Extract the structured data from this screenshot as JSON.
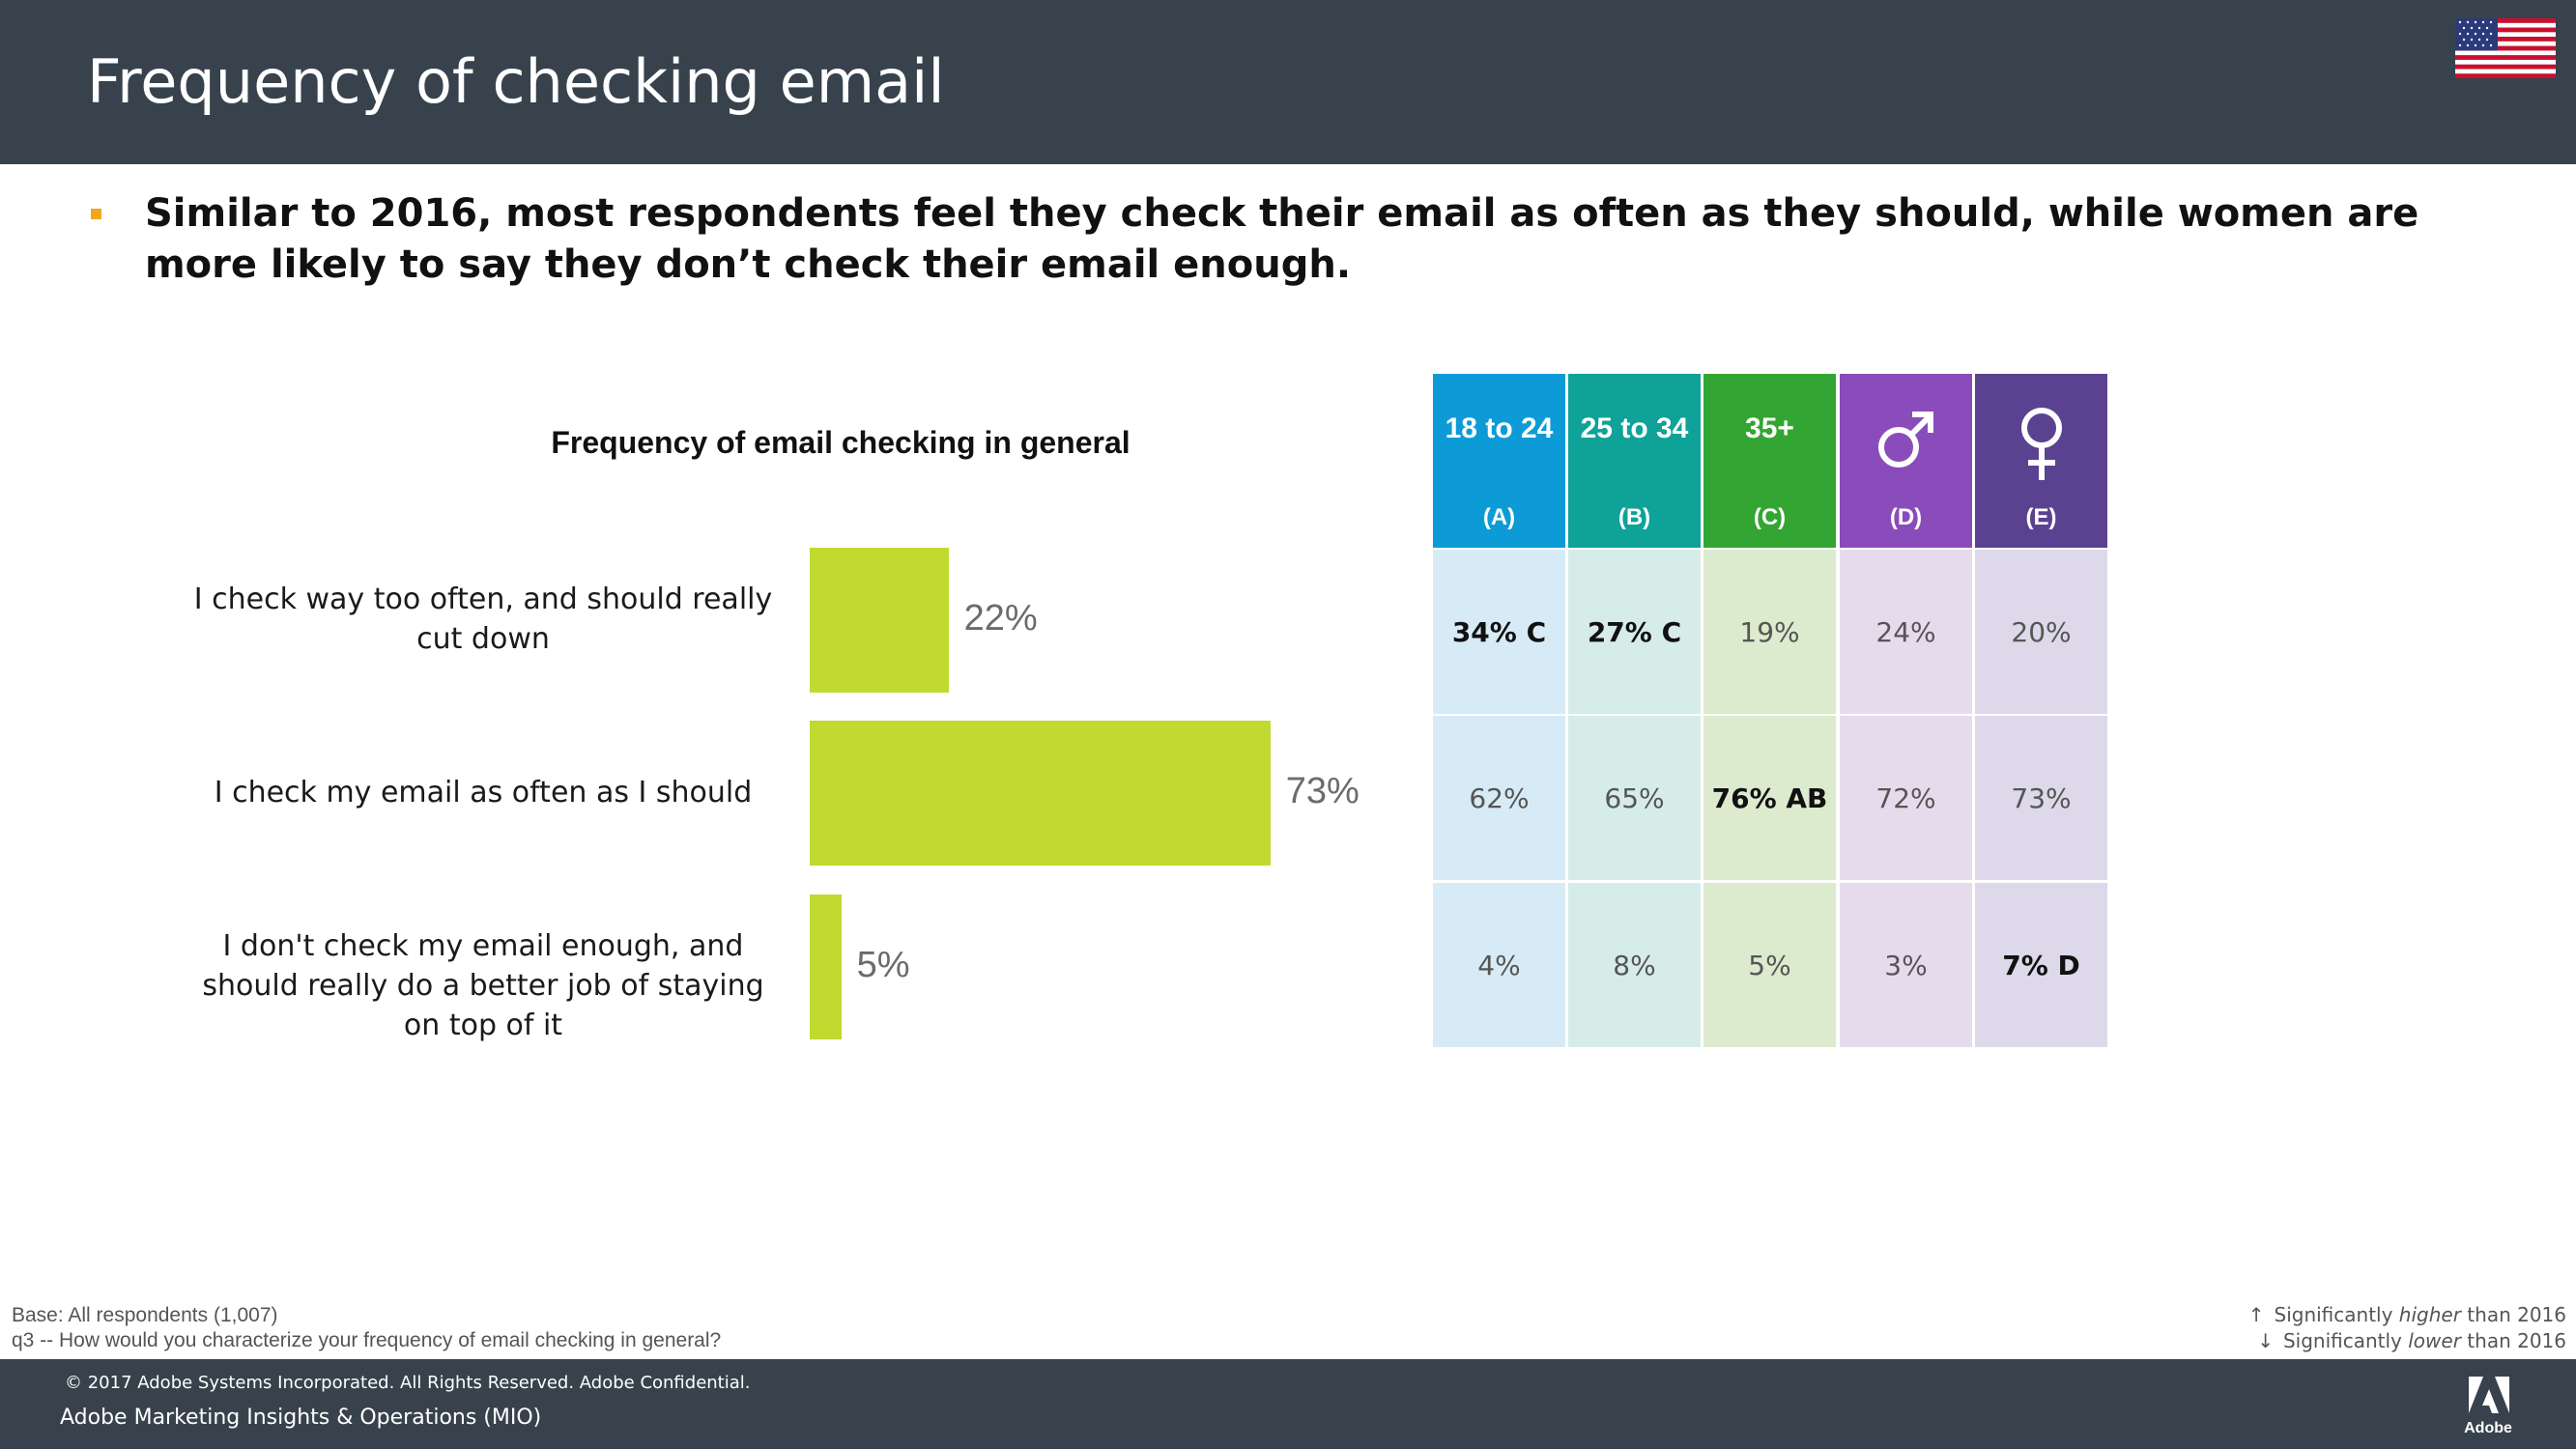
{
  "header": {
    "title": "Frequency of checking email",
    "flag_icon": "us-flag-icon"
  },
  "summary": {
    "text": "Similar to 2016, most respondents feel they check their email as often as they should, while women are more likely to say they don’t check their email enough."
  },
  "chart_data": {
    "type": "bar",
    "orientation": "horizontal",
    "title": "Frequency of email checking in general",
    "categories": [
      "I check way too often, and should really cut down",
      "I check my email as often as I should",
      "I don't check my email enough, and should really do a better job of staying on top of it"
    ],
    "values": [
      22,
      73,
      5
    ],
    "value_labels": [
      "22%",
      "73%",
      "5%"
    ],
    "unit": "%",
    "xlim": [
      0,
      100
    ],
    "bar_color": "#c2d92f"
  },
  "segments": {
    "columns": [
      {
        "label": "18 to 24",
        "sub": "(A)",
        "color": "#0d9bd7",
        "cell_color": "#d7ebf6"
      },
      {
        "label": "25 to 34",
        "sub": "(B)",
        "color": "#0ea298",
        "cell_color": "#d6ece9"
      },
      {
        "label": "35+",
        "sub": "(C)",
        "color": "#33a532",
        "cell_color": "#dceace"
      },
      {
        "icon": "male-symbol-icon",
        "sub": "(D)",
        "color": "#8a4cba",
        "cell_color": "#e6dbed"
      },
      {
        "icon": "female-symbol-icon",
        "sub": "(E)",
        "color": "#5b4290",
        "cell_color": "#ddd8ea"
      }
    ],
    "rows": [
      [
        {
          "text": "34% C",
          "sig": true
        },
        {
          "text": "27% C",
          "sig": true
        },
        {
          "text": "19%",
          "sig": false
        },
        {
          "text": "24%",
          "sig": false
        },
        {
          "text": "20%",
          "sig": false
        }
      ],
      [
        {
          "text": "62%",
          "sig": false
        },
        {
          "text": "65%",
          "sig": false
        },
        {
          "text": "76% AB",
          "sig": true
        },
        {
          "text": "72%",
          "sig": false
        },
        {
          "text": "73%",
          "sig": false
        }
      ],
      [
        {
          "text": "4%",
          "sig": false
        },
        {
          "text": "8%",
          "sig": false
        },
        {
          "text": "5%",
          "sig": false
        },
        {
          "text": "3%",
          "sig": false
        },
        {
          "text": "7% D",
          "sig": true
        }
      ]
    ]
  },
  "footnotes": {
    "base": "Base: All respondents (1,007)",
    "question": "q3 -- How would you characterize your frequency of email checking in general?"
  },
  "legend": {
    "higher": {
      "arrow": "↑",
      "pre": "Significantly ",
      "em": "higher",
      "post": " than 2016"
    },
    "lower": {
      "arrow": "↓",
      "pre": "Significantly ",
      "em": "lower",
      "post": " than 2016"
    }
  },
  "footer": {
    "copyright": "© 2017 Adobe Systems Incorporated.  All Rights Reserved.  Adobe Confidential.",
    "org": "Adobe Marketing Insights & Operations (MIO)",
    "brand": "Adobe",
    "logo_icon": "adobe-logo-icon"
  }
}
